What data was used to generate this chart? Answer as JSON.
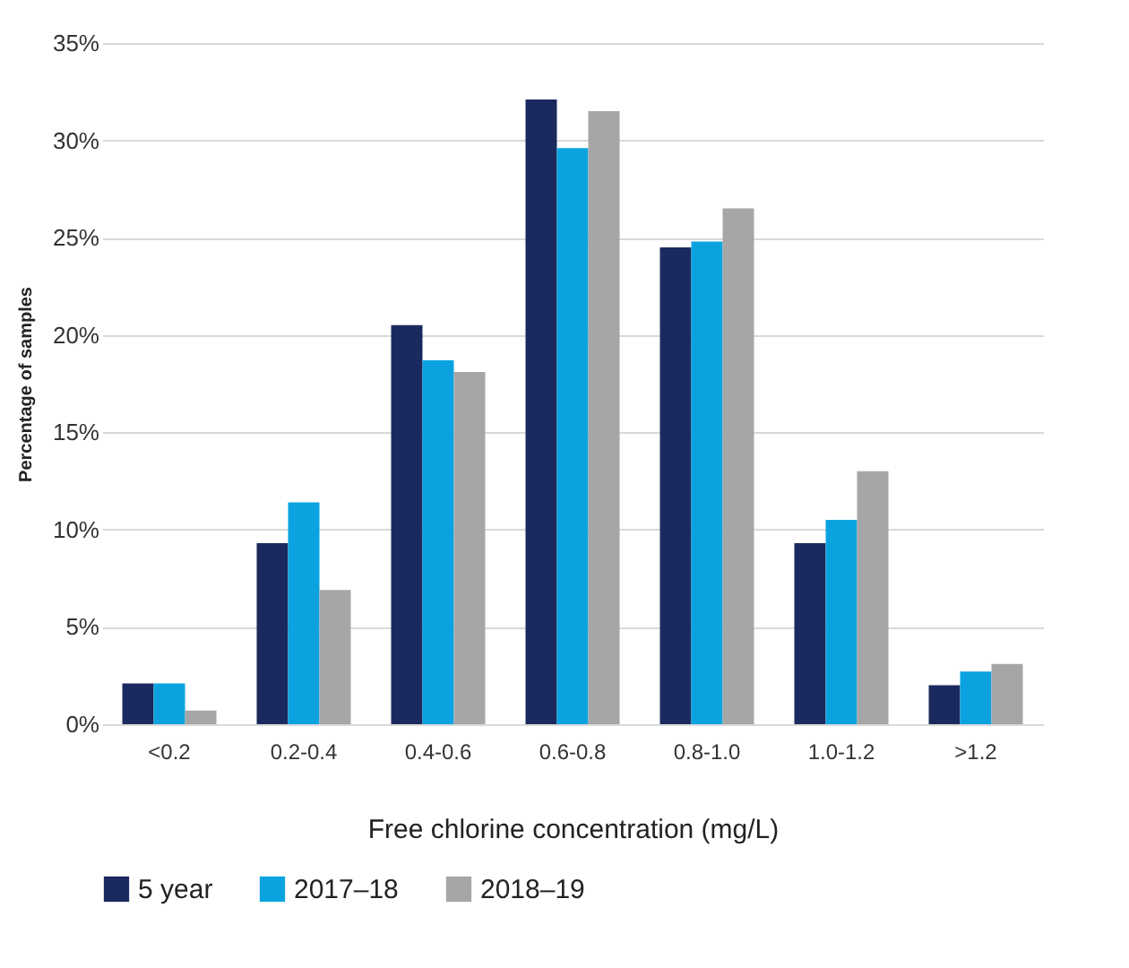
{
  "chart_data": {
    "type": "bar",
    "xlabel": "Free chlorine concentration (mg/L)",
    "ylabel": "Percentage of samples",
    "categories": [
      "<0.2",
      "0.2-0.4",
      "0.4-0.6",
      "0.6-0.8",
      "0.8-1.0",
      "1.0-1.2",
      ">1.2"
    ],
    "series": [
      {
        "name": "5 year",
        "color": "#1b2a5e",
        "values": [
          2.1,
          9.3,
          20.5,
          32.1,
          24.5,
          9.3,
          2.0
        ]
      },
      {
        "name": "2017–18",
        "color": "#0aa3e0",
        "values": [
          2.1,
          11.4,
          18.7,
          29.6,
          24.8,
          10.5,
          2.7
        ]
      },
      {
        "name": "2018–19",
        "color": "#a6a6a6",
        "values": [
          0.7,
          6.9,
          18.1,
          31.5,
          26.5,
          13.0,
          3.1
        ]
      }
    ],
    "ylim": [
      0,
      35
    ],
    "yticks": [
      {
        "value": 0,
        "label": "0%"
      },
      {
        "value": 5,
        "label": "5%"
      },
      {
        "value": 10,
        "label": "10%"
      },
      {
        "value": 15,
        "label": "15%"
      },
      {
        "value": 20,
        "label": "20%"
      },
      {
        "value": 25,
        "label": "25%"
      },
      {
        "value": 30,
        "label": "30%"
      },
      {
        "value": 35,
        "label": "35%"
      }
    ],
    "grid": "y",
    "legend": "bottom"
  }
}
